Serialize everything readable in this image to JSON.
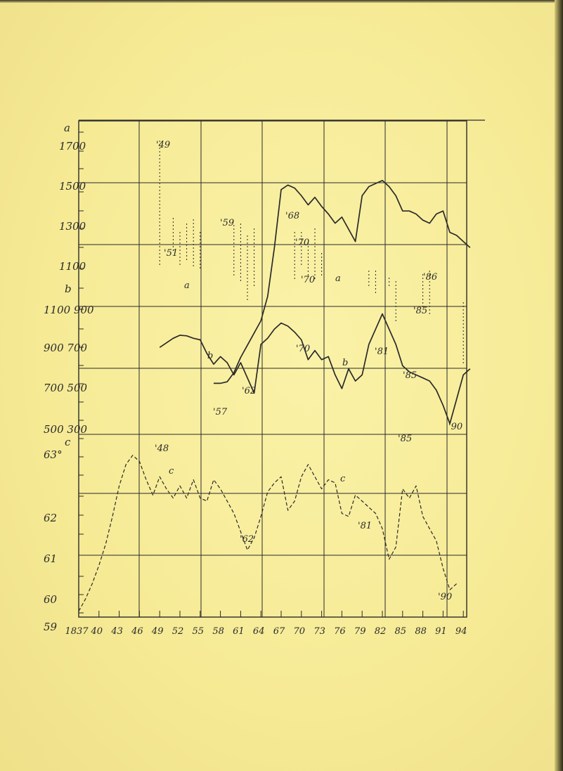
{
  "chart_data": {
    "type": "line",
    "title": "",
    "xlabel": "",
    "ylabel": "",
    "x_tick_labels": [
      "1837",
      "40",
      "43",
      "46",
      "49",
      "52",
      "55",
      "58",
      "61",
      "64",
      "67",
      "70",
      "73",
      "76",
      "79",
      "82",
      "85",
      "88",
      "91",
      "94"
    ],
    "left_axis_labels": [
      {
        "key": "a1",
        "text": "a"
      },
      {
        "key": "p1700",
        "text": "1700"
      },
      {
        "key": "p1500",
        "text": "1500"
      },
      {
        "key": "p1300",
        "text": "1300"
      },
      {
        "key": "p1100",
        "text": "1100"
      },
      {
        "key": "b1",
        "text": "b"
      },
      {
        "key": "p1100_900",
        "text": "1100 900"
      },
      {
        "key": "p900_700",
        "text": "900 700"
      },
      {
        "key": "p700_500",
        "text": "700 500"
      },
      {
        "key": "p500_300",
        "text": "500 300"
      },
      {
        "key": "c1",
        "text": "c"
      },
      {
        "key": "t63",
        "text": "63°"
      },
      {
        "key": "t62",
        "text": "62"
      },
      {
        "key": "t61",
        "text": "61"
      },
      {
        "key": "t60",
        "text": "60"
      },
      {
        "key": "t59",
        "text": "59"
      }
    ],
    "series": [
      {
        "key": "a",
        "x": [
          1857,
          1858,
          1859,
          1860,
          1861,
          1862,
          1863,
          1864,
          1865,
          1866,
          1867,
          1868,
          1869,
          1870,
          1871,
          1872,
          1873,
          1874,
          1875,
          1876,
          1877,
          1878,
          1879,
          1880,
          1881,
          1882,
          1883,
          1884,
          1885,
          1886,
          1887,
          1888,
          1889,
          1890,
          1891,
          1892,
          1893,
          1894,
          1895
        ],
        "y": [
          435,
          435,
          440,
          470,
          520,
          560,
          600,
          640,
          720,
          880,
          1070,
          1085,
          1075,
          1050,
          1020,
          1045,
          1015,
          990,
          960,
          980,
          940,
          900,
          1050,
          1080,
          1090,
          1100,
          1080,
          1050,
          1000,
          1000,
          990,
          970,
          960,
          990,
          1000,
          930,
          920,
          900,
          880
        ]
      },
      {
        "key": "b",
        "x": [
          1849,
          1850,
          1851,
          1852,
          1853,
          1854,
          1855,
          1856,
          1857,
          1858,
          1859,
          1860,
          1861,
          1862,
          1863,
          1864,
          1865,
          1866,
          1867,
          1868,
          1869,
          1870,
          1871,
          1872,
          1873,
          1874,
          1875,
          1876,
          1877,
          1878,
          1879,
          1880,
          1881,
          1882,
          1883,
          1884,
          1885,
          1886,
          1887,
          1888,
          1889,
          1890,
          1891,
          1892,
          1893,
          1894,
          1895
        ],
        "y": [
          790,
          805,
          820,
          830,
          828,
          820,
          815,
          770,
          735,
          760,
          740,
          700,
          740,
          690,
          640,
          800,
          820,
          850,
          870,
          860,
          840,
          815,
          750,
          780,
          750,
          760,
          700,
          655,
          720,
          680,
          700,
          800,
          850,
          900,
          850,
          800,
          730,
          710,
          700,
          690,
          680,
          650,
          600,
          540,
          620,
          700,
          720
        ]
      },
      {
        "key": "c",
        "x": [
          1837,
          1838,
          1839,
          1840,
          1841,
          1842,
          1843,
          1844,
          1845,
          1846,
          1847,
          1848,
          1849,
          1850,
          1851,
          1852,
          1853,
          1854,
          1855,
          1856,
          1857,
          1858,
          1859,
          1860,
          1861,
          1862,
          1863,
          1864,
          1865,
          1866,
          1867,
          1868,
          1869,
          1870,
          1871,
          1872,
          1873,
          1874,
          1875,
          1876,
          1877,
          1878,
          1879,
          1880,
          1881,
          1882,
          1883,
          1884,
          1885,
          1886,
          1887,
          1888,
          1889,
          1890,
          1891,
          1892,
          1893
        ],
        "y": [
          59.1,
          59.5,
          60.0,
          60.6,
          61.3,
          62.2,
          63.2,
          63.9,
          64.2,
          64.0,
          63.4,
          62.9,
          63.5,
          63.1,
          62.8,
          63.2,
          62.8,
          63.4,
          62.8,
          62.7,
          63.4,
          63.1,
          62.7,
          62.3,
          61.7,
          61.1,
          61.5,
          62.2,
          63.0,
          63.3,
          63.5,
          62.4,
          62.7,
          63.5,
          63.9,
          63.5,
          63.1,
          63.4,
          63.3,
          62.3,
          62.2,
          62.9,
          62.7,
          62.5,
          62.3,
          61.8,
          60.8,
          61.2,
          63.1,
          62.8,
          63.2,
          62.2,
          61.8,
          61.4,
          60.5,
          59.8,
          60.0
        ]
      }
    ],
    "annotations": [
      {
        "key": "n49",
        "text": "'49"
      },
      {
        "key": "n51",
        "text": "'51"
      },
      {
        "key": "na1",
        "text": "a"
      },
      {
        "key": "n59",
        "text": "'59"
      },
      {
        "key": "n68",
        "text": "'68"
      },
      {
        "key": "n70a",
        "text": "'70"
      },
      {
        "key": "n70b",
        "text": "'70"
      },
      {
        "key": "na2",
        "text": "a"
      },
      {
        "key": "n86",
        "text": "'86"
      },
      {
        "key": "n85",
        "text": "'85"
      },
      {
        "key": "nb1",
        "text": "b"
      },
      {
        "key": "n70c",
        "text": "'70"
      },
      {
        "key": "nb2",
        "text": "b"
      },
      {
        "key": "n81",
        "text": "'81"
      },
      {
        "key": "n62",
        "text": "'62"
      },
      {
        "key": "n57",
        "text": "'57"
      },
      {
        "key": "n85b",
        "text": "'85"
      },
      {
        "key": "n90",
        "text": "'90"
      },
      {
        "key": "n48",
        "text": "'48"
      },
      {
        "key": "nc1",
        "text": "c"
      },
      {
        "key": "n85c",
        "text": "'85"
      },
      {
        "key": "nc2",
        "text": "c"
      },
      {
        "key": "n81b",
        "text": "'81"
      },
      {
        "key": "n62b",
        "text": "'62"
      },
      {
        "key": "n90b",
        "text": "'90"
      }
    ],
    "grid": true
  },
  "colors": {
    "paper": "#f6ea95",
    "ink": "#2a2a2a"
  }
}
